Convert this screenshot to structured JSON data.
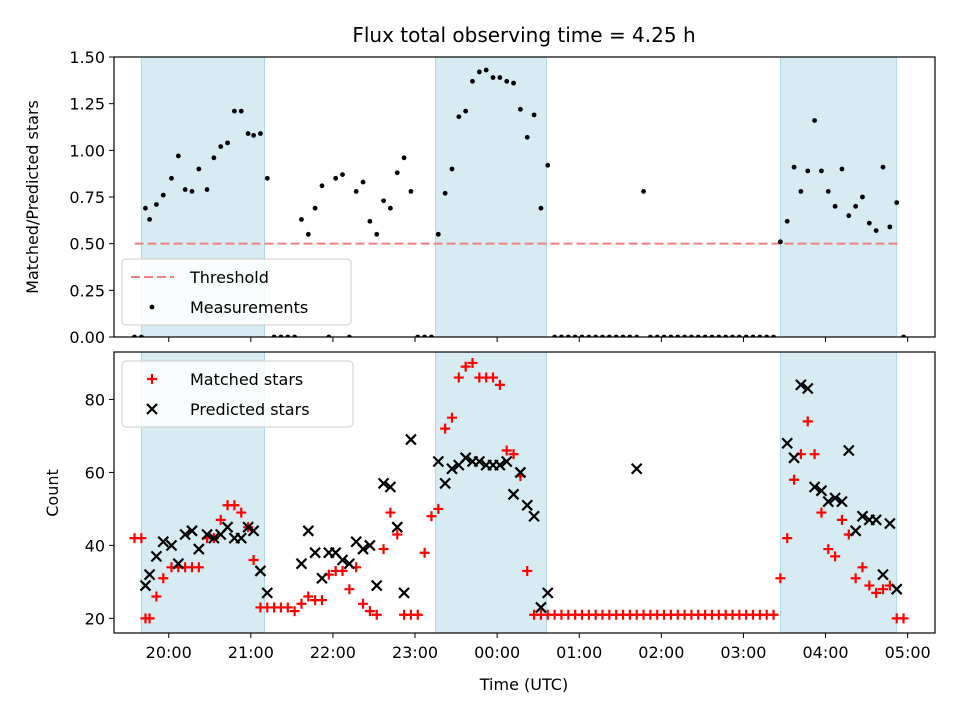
{
  "figure": {
    "title": "Flux total observing time = 4.25 h",
    "xlabel": "Time (UTC)"
  },
  "chart_data": [
    {
      "type": "scatter",
      "panel": "top",
      "ylabel": "Matched/Predicted stars",
      "xlim": [
        "19:20",
        "05:20"
      ],
      "ylim": [
        0,
        1.5
      ],
      "yticks": [
        "0.00",
        "0.25",
        "0.50",
        "0.75",
        "1.00",
        "1.25",
        "1.50"
      ],
      "legend_position": "lower-left",
      "shaded_intervals": [
        [
          "19:40",
          "21:10"
        ],
        [
          "23:15",
          "00:36"
        ],
        [
          "03:27",
          "04:52"
        ]
      ],
      "threshold": {
        "name": "Threshold",
        "value": 0.5,
        "x_range": [
          "19:35",
          "04:55"
        ],
        "color": "#f08080"
      },
      "series": [
        {
          "name": "Measurements",
          "color": "#000000",
          "x": [
            "19:35",
            "19:40",
            "19:43",
            "19:46",
            "19:51",
            "19:56",
            "20:02",
            "20:07",
            "20:12",
            "20:17",
            "20:22",
            "20:28",
            "20:33",
            "20:38",
            "20:43",
            "20:48",
            "20:53",
            "20:58",
            "21:02",
            "21:07",
            "21:12",
            "21:17",
            "21:22",
            "21:27",
            "21:32",
            "21:37",
            "21:42",
            "21:47",
            "21:52",
            "21:57",
            "22:02",
            "22:07",
            "22:12",
            "22:17",
            "22:22",
            "22:27",
            "22:32",
            "22:37",
            "22:42",
            "22:47",
            "22:52",
            "22:57",
            "23:02",
            "23:07",
            "23:12",
            "23:17",
            "23:22",
            "23:27",
            "23:32",
            "23:37",
            "23:42",
            "23:47",
            "23:52",
            "23:57",
            "00:02",
            "00:07",
            "00:12",
            "00:17",
            "00:22",
            "00:27",
            "00:32",
            "00:37",
            "00:42",
            "00:47",
            "00:52",
            "00:57",
            "01:02",
            "01:07",
            "01:12",
            "01:17",
            "01:22",
            "01:27",
            "01:32",
            "01:37",
            "01:42",
            "01:47",
            "01:52",
            "01:57",
            "02:02",
            "02:07",
            "02:12",
            "02:17",
            "02:22",
            "02:27",
            "02:32",
            "02:37",
            "02:42",
            "02:47",
            "02:52",
            "02:57",
            "03:02",
            "03:07",
            "03:12",
            "03:17",
            "03:22",
            "03:27",
            "03:32",
            "03:37",
            "03:42",
            "03:47",
            "03:52",
            "03:57",
            "04:02",
            "04:07",
            "04:12",
            "04:17",
            "04:22",
            "04:27",
            "04:32",
            "04:37",
            "04:42",
            "04:47",
            "04:52",
            "04:57"
          ],
          "y": [
            0,
            0,
            0.69,
            0.63,
            0.71,
            0.76,
            0.85,
            0.97,
            0.79,
            0.78,
            0.9,
            0.79,
            0.96,
            1.02,
            1.04,
            1.21,
            1.21,
            1.09,
            1.08,
            1.09,
            0.85,
            0,
            0,
            0,
            0,
            0.63,
            0.55,
            0.69,
            0.81,
            0,
            0.85,
            0.87,
            0,
            0.78,
            0.83,
            0.62,
            0.55,
            0.73,
            0.69,
            0.88,
            0.96,
            0.78,
            0,
            0,
            0,
            0.55,
            0.77,
            0.9,
            1.18,
            1.21,
            1.37,
            1.42,
            1.43,
            1.39,
            1.39,
            1.37,
            1.36,
            1.22,
            1.07,
            1.19,
            0.69,
            0.92,
            0,
            0,
            0,
            0,
            0,
            0,
            0,
            0,
            0,
            0,
            0,
            0,
            0,
            0.78,
            0,
            0,
            0,
            0,
            0,
            0,
            0,
            0,
            0,
            0,
            0,
            0,
            0,
            0,
            0,
            0,
            0,
            0,
            0,
            0.51,
            0.62,
            0.91,
            0.78,
            0.89,
            1.16,
            0.89,
            0.78,
            0.7,
            0.9,
            0.65,
            0.7,
            0.75,
            0.61,
            0.57,
            0.91,
            0.59,
            0.72,
            0
          ]
        }
      ]
    },
    {
      "type": "scatter",
      "panel": "bottom",
      "ylabel": "Count",
      "xlim": [
        "19:20",
        "05:20"
      ],
      "ylim": [
        16,
        93
      ],
      "yticks": [
        "20",
        "40",
        "60",
        "80"
      ],
      "xticks": [
        "20:00",
        "21:00",
        "22:00",
        "23:00",
        "00:00",
        "01:00",
        "02:00",
        "03:00",
        "04:00",
        "05:00"
      ],
      "legend_position": "upper-left",
      "shaded_intervals": [
        [
          "19:40",
          "21:10"
        ],
        [
          "23:15",
          "00:36"
        ],
        [
          "03:27",
          "04:52"
        ]
      ],
      "series": [
        {
          "name": "Matched stars",
          "color": "#ff0000",
          "marker": "+",
          "x": [
            "19:35",
            "19:40",
            "19:43",
            "19:46",
            "19:51",
            "19:56",
            "20:02",
            "20:07",
            "20:12",
            "20:17",
            "20:22",
            "20:28",
            "20:33",
            "20:38",
            "20:43",
            "20:48",
            "20:53",
            "20:58",
            "21:02",
            "21:07",
            "21:12",
            "21:17",
            "21:22",
            "21:27",
            "21:32",
            "21:37",
            "21:42",
            "21:47",
            "21:52",
            "21:57",
            "22:02",
            "22:07",
            "22:12",
            "22:17",
            "22:22",
            "22:27",
            "22:32",
            "22:37",
            "22:42",
            "22:47",
            "22:52",
            "22:57",
            "23:02",
            "23:07",
            "23:12",
            "23:17",
            "23:22",
            "23:27",
            "23:32",
            "23:37",
            "23:42",
            "23:47",
            "23:52",
            "23:57",
            "00:02",
            "00:07",
            "00:12",
            "00:17",
            "00:22",
            "00:27",
            "00:32",
            "00:37",
            "00:42",
            "00:47",
            "00:52",
            "00:57",
            "01:02",
            "01:07",
            "01:12",
            "01:17",
            "01:22",
            "01:27",
            "01:32",
            "01:37",
            "01:42",
            "01:47",
            "01:52",
            "01:57",
            "02:02",
            "02:07",
            "02:12",
            "02:17",
            "02:22",
            "02:27",
            "02:32",
            "02:37",
            "02:42",
            "02:47",
            "02:52",
            "02:57",
            "03:02",
            "03:07",
            "03:12",
            "03:17",
            "03:22",
            "03:27",
            "03:32",
            "03:37",
            "03:42",
            "03:47",
            "03:52",
            "03:57",
            "04:02",
            "04:07",
            "04:12",
            "04:17",
            "04:22",
            "04:27",
            "04:32",
            "04:37",
            "04:42",
            "04:47",
            "04:52",
            "04:57"
          ],
          "y": [
            42,
            42,
            20,
            20,
            26,
            31,
            34,
            34,
            34,
            34,
            34,
            42,
            42,
            47,
            51,
            51,
            49,
            45,
            36,
            23,
            23,
            23,
            23,
            23,
            22,
            24,
            26,
            25,
            25,
            32,
            33,
            33,
            28,
            34,
            24,
            22,
            21,
            39,
            49,
            43,
            21,
            21,
            21,
            38,
            48,
            50,
            72,
            75,
            86,
            89,
            90,
            86,
            86,
            86,
            84,
            66,
            65,
            59,
            33,
            21,
            21,
            21,
            21,
            21,
            21,
            21,
            21,
            21,
            21,
            21,
            21,
            21,
            21,
            21,
            21,
            21,
            21,
            21,
            21,
            21,
            21,
            21,
            21,
            21,
            21,
            21,
            21,
            21,
            21,
            21,
            21,
            21,
            21,
            21,
            21,
            31,
            42,
            58,
            65,
            74,
            65,
            49,
            39,
            37,
            47,
            43,
            31,
            34,
            29,
            27,
            28,
            29,
            20,
            20
          ]
        },
        {
          "name": "Predicted stars",
          "color": "#000000",
          "marker": "x",
          "x": [
            "19:43",
            "19:46",
            "19:51",
            "19:56",
            "20:02",
            "20:07",
            "20:12",
            "20:17",
            "20:22",
            "20:28",
            "20:33",
            "20:38",
            "20:43",
            "20:48",
            "20:53",
            "20:58",
            "21:02",
            "21:07",
            "21:12",
            "21:37",
            "21:42",
            "21:47",
            "21:52",
            "21:57",
            "22:02",
            "22:07",
            "22:12",
            "22:17",
            "22:22",
            "22:27",
            "22:32",
            "22:37",
            "22:42",
            "22:47",
            "22:52",
            "22:57",
            "23:17",
            "23:22",
            "23:27",
            "23:32",
            "23:37",
            "23:42",
            "23:47",
            "23:52",
            "23:57",
            "00:02",
            "00:07",
            "00:12",
            "00:17",
            "00:22",
            "00:27",
            "00:32",
            "00:37",
            "01:42",
            "03:32",
            "03:37",
            "03:42",
            "03:47",
            "03:52",
            "03:57",
            "04:02",
            "04:07",
            "04:12",
            "04:17",
            "04:22",
            "04:27",
            "04:32",
            "04:37",
            "04:42",
            "04:47",
            "04:52"
          ],
          "y": [
            29,
            32,
            37,
            41,
            40,
            35,
            43,
            44,
            39,
            43,
            42,
            43,
            45,
            42,
            42,
            45,
            44,
            33,
            27,
            35,
            44,
            38,
            31,
            38,
            38,
            36,
            35,
            41,
            39,
            40,
            29,
            57,
            56,
            45,
            27,
            69,
            63,
            57,
            61,
            62,
            64,
            63,
            63,
            62,
            62,
            62,
            63,
            54,
            60,
            51,
            48,
            23,
            27,
            61,
            68,
            64,
            84,
            83,
            56,
            55,
            52,
            53,
            52,
            66,
            44,
            48,
            47,
            47,
            32,
            46,
            28
          ]
        }
      ]
    }
  ]
}
